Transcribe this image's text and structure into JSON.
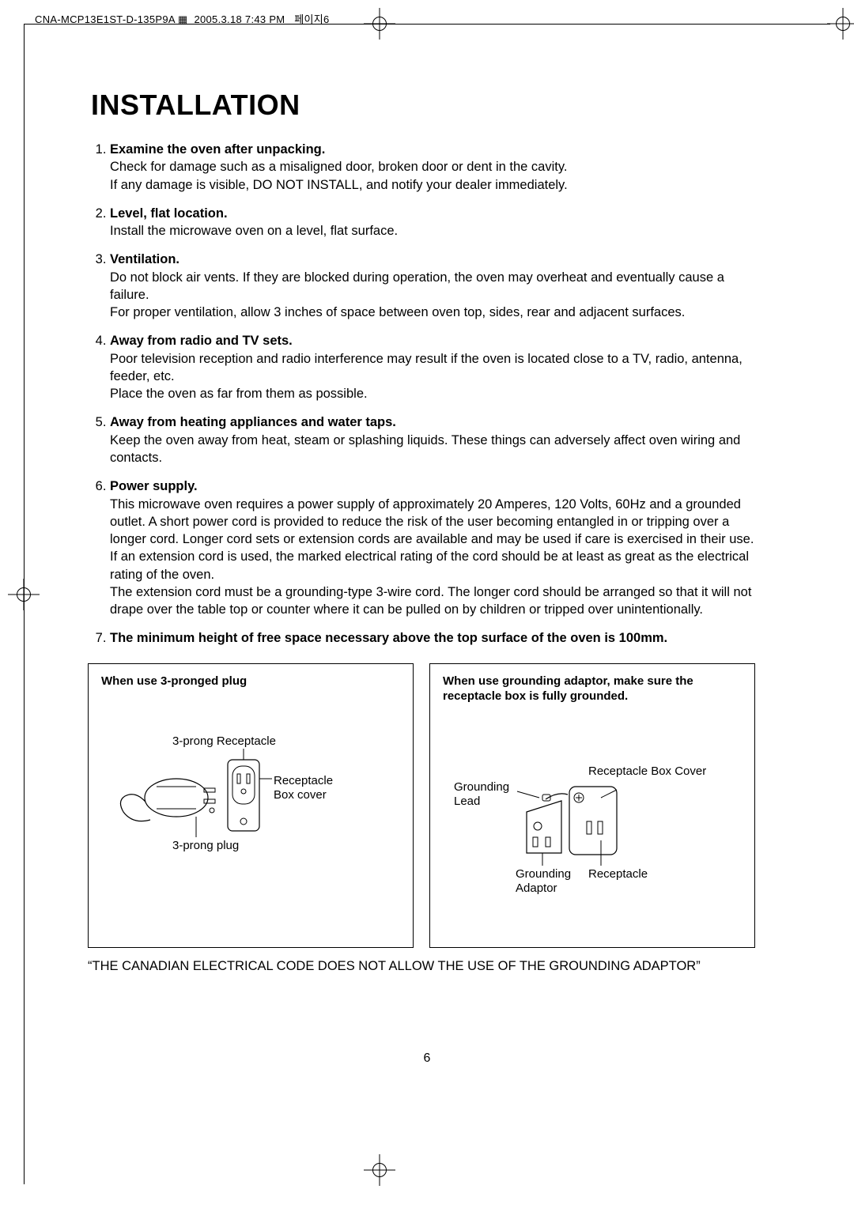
{
  "header": {
    "doc_id": "CNA-MCP13E1ST-D-135P9A",
    "timestamp": "2005.3.18 7:43 PM",
    "page_ref": "페이지6"
  },
  "title": "INSTALLATION",
  "items": [
    {
      "heading": "Examine the oven after unpacking.",
      "body": "Check for damage such as a misaligned door, broken door or dent in the cavity.\nIf any damage is visible, DO NOT INSTALL, and notify your dealer immediately."
    },
    {
      "heading": "Level, flat location.",
      "body": "Install the microwave oven on a level, flat surface."
    },
    {
      "heading": "Ventilation.",
      "body": "Do not block air vents. If they are blocked during operation, the oven may overheat and eventually cause a failure.\nFor proper ventilation, allow 3 inches of space between oven top, sides, rear and adjacent surfaces."
    },
    {
      "heading": "Away from radio and TV sets.",
      "body": "Poor television reception and radio interference may result if the oven is located close to a TV, radio, antenna, feeder, etc.\nPlace the oven as far from them as possible."
    },
    {
      "heading": "Away from heating appliances and water taps.",
      "body": "Keep the oven away from heat, steam or splashing liquids. These things can adversely affect oven wiring and contacts."
    },
    {
      "heading": "Power supply.",
      "body": "This microwave oven requires a power supply of approximately 20 Amperes, 120 Volts, 60Hz and a grounded outlet. A short power cord is provided to reduce the risk of the user becoming entangled in or tripping over a longer cord. Longer cord sets or extension cords are available and may be used if care is exercised in their use.\nIf an extension cord is used, the marked electrical rating of the cord should be at least as great as the electrical rating of the oven.\nThe extension cord must be a grounding-type 3-wire cord. The longer cord should be arranged so that it will not drape over the table top or counter where it can be pulled on by children or tripped over unintentionally."
    },
    {
      "heading": "The minimum height of free space necessary above the top surface of the oven is 100mm.",
      "body": ""
    }
  ],
  "box_left": {
    "title": "When use 3-pronged plug",
    "labels": {
      "receptacle_title": "3-prong Receptacle",
      "receptacle_box": "Receptacle\nBox cover",
      "plug": "3-prong plug"
    }
  },
  "box_right": {
    "title": "When use grounding adaptor, make sure the receptacle box is fully grounded.",
    "labels": {
      "box_cover": "Receptacle Box Cover",
      "grounding_lead": "Grounding\nLead",
      "grounding_adaptor": "Grounding\nAdaptor",
      "receptacle": "Receptacle"
    }
  },
  "footer_note": "“THE CANADIAN ELECTRICAL CODE DOES NOT ALLOW THE USE OF THE GROUNDING ADAPTOR”",
  "page_number": "6"
}
